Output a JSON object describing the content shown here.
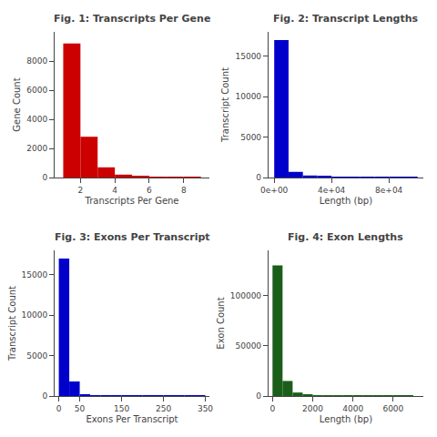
{
  "chart_data": [
    {
      "type": "histogram",
      "title": "Fig. 1: Transcripts Per Gene",
      "xlabel": "Transcripts Per Gene",
      "ylabel": "Gene Count",
      "color": "#CC0000",
      "bins": [
        1,
        2,
        3,
        4,
        5,
        6,
        7,
        8,
        9
      ],
      "values": [
        9200,
        2800,
        700,
        200,
        80,
        40,
        20,
        15
      ],
      "xlim": [
        0.5,
        9.5
      ],
      "ylim": [
        0,
        10000
      ],
      "xticks": [
        2,
        4,
        6,
        8
      ],
      "yticks": [
        0,
        2000,
        4000,
        6000,
        8000
      ],
      "grid": false
    },
    {
      "type": "histogram",
      "title": "Fig. 2: Transcript Lengths",
      "xlabel": "Length (bp)",
      "ylabel": "Transcript Count",
      "color": "#0000CC",
      "bins": [
        0,
        10000,
        20000,
        30000,
        40000,
        50000,
        60000,
        70000,
        80000,
        90000,
        100000
      ],
      "values": [
        17000,
        700,
        250,
        120,
        70,
        40,
        25,
        18,
        12,
        8
      ],
      "xlim": [
        -4000,
        104000
      ],
      "ylim": [
        0,
        18000
      ],
      "xticks": [
        {
          "value": 0,
          "label": "0e+00"
        },
        {
          "value": 40000,
          "label": "4e+04"
        },
        {
          "value": 80000,
          "label": "8e+04"
        }
      ],
      "yticks": [
        0,
        5000,
        10000,
        15000
      ],
      "grid": false
    },
    {
      "type": "histogram",
      "title": "Fig. 3: Exons Per Transcript",
      "xlabel": "Exons Per Transcript",
      "ylabel": "Transcript Count",
      "color": "#0000CC",
      "bins": [
        0,
        25,
        50,
        75,
        100,
        125,
        150,
        175,
        200,
        225,
        250,
        275,
        300,
        325,
        350
      ],
      "values": [
        17000,
        1800,
        180,
        70,
        35,
        18,
        12,
        8,
        6,
        4,
        3,
        2,
        2,
        1
      ],
      "xlim": [
        -10,
        360
      ],
      "ylim": [
        0,
        18000
      ],
      "xticks": [
        0,
        50,
        150,
        250,
        350
      ],
      "yticks": [
        0,
        5000,
        10000,
        15000
      ],
      "grid": false
    },
    {
      "type": "histogram",
      "title": "Fig. 4: Exon Lengths",
      "xlabel": "Length (bp)",
      "ylabel": "Exon Count",
      "color": "#1a5e1a",
      "bins": [
        0,
        500,
        1000,
        1500,
        2000,
        2500,
        3000,
        3500,
        4000,
        4500,
        5000,
        5500,
        6000,
        6500,
        7000
      ],
      "values": [
        130000,
        15000,
        3500,
        1200,
        600,
        300,
        180,
        120,
        80,
        55,
        40,
        30,
        22,
        18
      ],
      "xlim": [
        -200,
        7500
      ],
      "ylim": [
        0,
        145000
      ],
      "xticks": [
        0,
        2000,
        4000,
        6000
      ],
      "yticks": [
        0,
        50000,
        100000
      ],
      "grid": false
    }
  ]
}
